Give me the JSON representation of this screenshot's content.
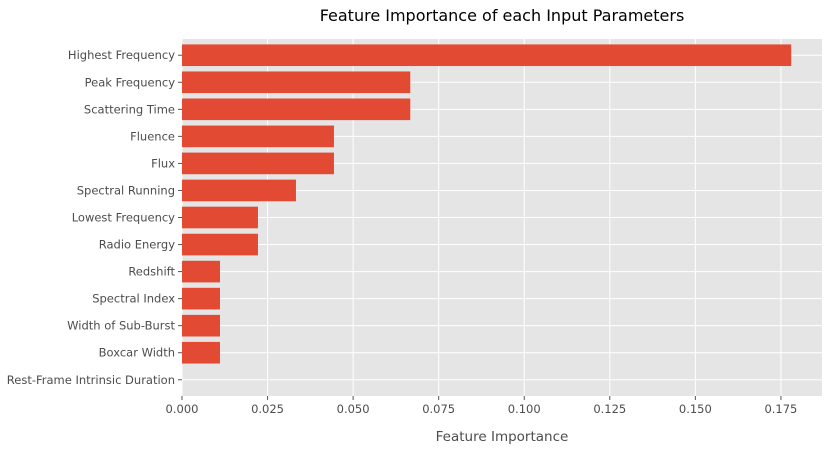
{
  "chart_data": {
    "type": "bar",
    "orientation": "horizontal",
    "title": "Feature Importance of each Input Parameters",
    "xlabel": "Feature Importance",
    "ylabel": "",
    "categories": [
      "Highest Frequency",
      "Peak Frequency",
      "Scattering Time",
      "Fluence",
      "Flux",
      "Spectral Running",
      "Lowest Frequency",
      "Radio Energy",
      "Redshift",
      "Spectral Index",
      "Width of Sub-Burst",
      "Boxcar Width",
      "Rest-Frame Intrinsic Duration"
    ],
    "values": [
      0.178,
      0.0667,
      0.0667,
      0.0444,
      0.0444,
      0.0333,
      0.0222,
      0.0222,
      0.0111,
      0.0111,
      0.0111,
      0.0111,
      0.0
    ],
    "xlim": [
      0,
      0.187
    ],
    "xticks": [
      "0.000",
      "0.025",
      "0.050",
      "0.075",
      "0.100",
      "0.125",
      "0.150",
      "0.175"
    ],
    "grid": true,
    "colors": {
      "bar": "#e24a33",
      "background": "#e5e5e5",
      "grid": "#ffffff"
    }
  }
}
